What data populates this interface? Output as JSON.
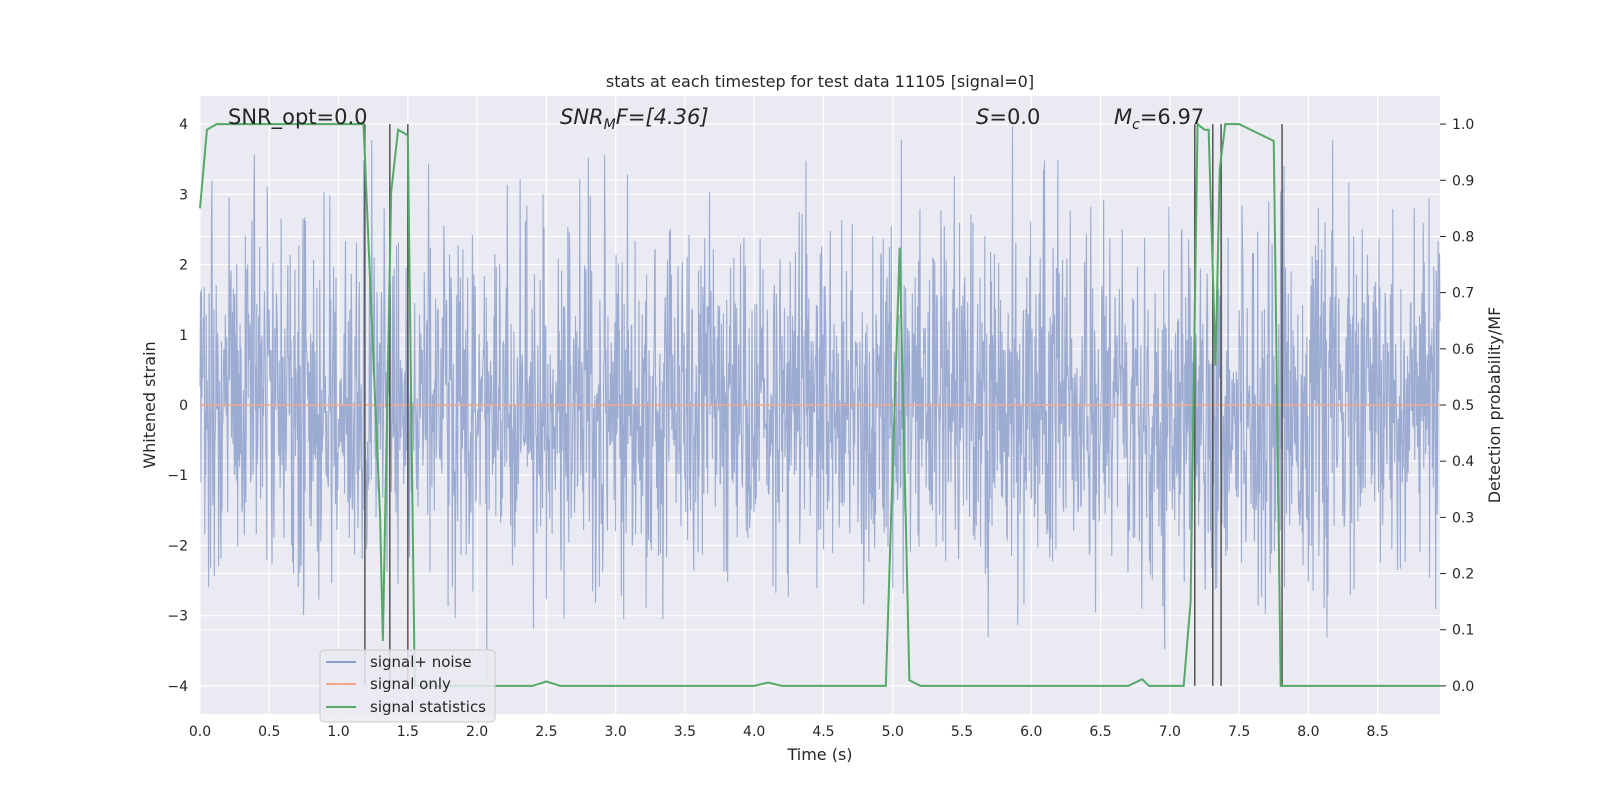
{
  "chart_data": {
    "type": "line",
    "title": "stats at each timestep for test data 11105 [signal=0]",
    "xlabel": "Time (s)",
    "ylabel": "Whitened strain",
    "y2label": "Detection probability/MF",
    "xlim": [
      0.0,
      8.95
    ],
    "ylim": [
      -4.4,
      4.4
    ],
    "y2lim": [
      -0.05,
      1.05
    ],
    "xticks": [
      0.0,
      0.5,
      1.0,
      1.5,
      2.0,
      2.5,
      3.0,
      3.5,
      4.0,
      4.5,
      5.0,
      5.5,
      6.0,
      6.5,
      7.0,
      7.5,
      8.0,
      8.5
    ],
    "xtick_labels": [
      "0.0",
      "0.5",
      "1.0",
      "1.5",
      "2.0",
      "2.5",
      "3.0",
      "3.5",
      "4.0",
      "4.5",
      "5.0",
      "5.5",
      "6.0",
      "6.5",
      "7.0",
      "7.5",
      "8.0",
      "8.5"
    ],
    "yticks": [
      4,
      3,
      2,
      1,
      0,
      -1,
      -2,
      -3,
      -4
    ],
    "ytick_labels": [
      "4",
      "3",
      "2",
      "1",
      "0",
      "−1",
      "−2",
      "−3",
      "−4"
    ],
    "y2ticks": [
      1.0,
      0.9,
      0.8,
      0.7,
      0.6,
      0.5,
      0.4,
      0.3,
      0.2,
      0.1,
      0.0
    ],
    "y2tick_labels": [
      "1.0",
      "0.9",
      "0.8",
      "0.7",
      "0.6",
      "0.5",
      "0.4",
      "0.3",
      "0.2",
      "0.1",
      "0.0"
    ],
    "grid": true,
    "legend_position": "lower-left",
    "annotations": {
      "snr_opt": "SNR_opt=0.0",
      "snr_mf_prefix": "SNR",
      "snr_mf_sub": "M",
      "snr_mf_suffix": "F=[4.36]",
      "s_prefix": "S",
      "s_suffix": "=0.0",
      "mc_prefix": "M",
      "mc_sub": "c",
      "mc_suffix": "=6.97"
    },
    "series": [
      {
        "name": "signal+ noise",
        "color": "#8da0cb",
        "duration": 8.95,
        "amplitude_std": 1.0,
        "max": 3.97,
        "min": -3.95
      },
      {
        "name": "signal only",
        "color": "#f0a88c",
        "x": [
          0.0,
          8.95
        ],
        "y": [
          0.0,
          0.0
        ]
      },
      {
        "name": "signal statistics",
        "color": "#55a868",
        "axis": "right",
        "x": [
          0.0,
          0.05,
          0.12,
          0.3,
          0.6,
          1.0,
          1.18,
          1.3,
          1.32,
          1.38,
          1.43,
          1.5,
          1.55,
          1.6,
          2.0,
          2.4,
          2.5,
          2.6,
          3.0,
          4.0,
          4.1,
          4.2,
          4.25,
          4.5,
          4.95,
          5.05,
          5.12,
          5.2,
          6.0,
          6.7,
          6.8,
          6.85,
          7.1,
          7.15,
          7.2,
          7.25,
          7.28,
          7.33,
          7.36,
          7.4,
          7.43,
          7.5,
          7.75,
          7.8,
          7.85,
          8.0,
          8.95
        ],
        "y": [
          0.85,
          0.99,
          1.0,
          1.0,
          1.0,
          1.0,
          1.0,
          0.3,
          0.08,
          0.88,
          0.99,
          0.98,
          0.0,
          0.0,
          0.0,
          0.0,
          0.008,
          0.0,
          0.0,
          0.0,
          0.006,
          0.0,
          0.0,
          0.0,
          0.0,
          0.78,
          0.01,
          0.0,
          0.0,
          0.0,
          0.012,
          0.0,
          0.0,
          0.15,
          1.0,
          0.99,
          0.99,
          0.57,
          0.92,
          1.0,
          1.0,
          1.0,
          0.97,
          0.0,
          0.0,
          0.0,
          0.0
        ]
      }
    ],
    "vlines": [
      1.19,
      1.37,
      1.5,
      7.18,
      7.31,
      7.37,
      7.81
    ]
  }
}
